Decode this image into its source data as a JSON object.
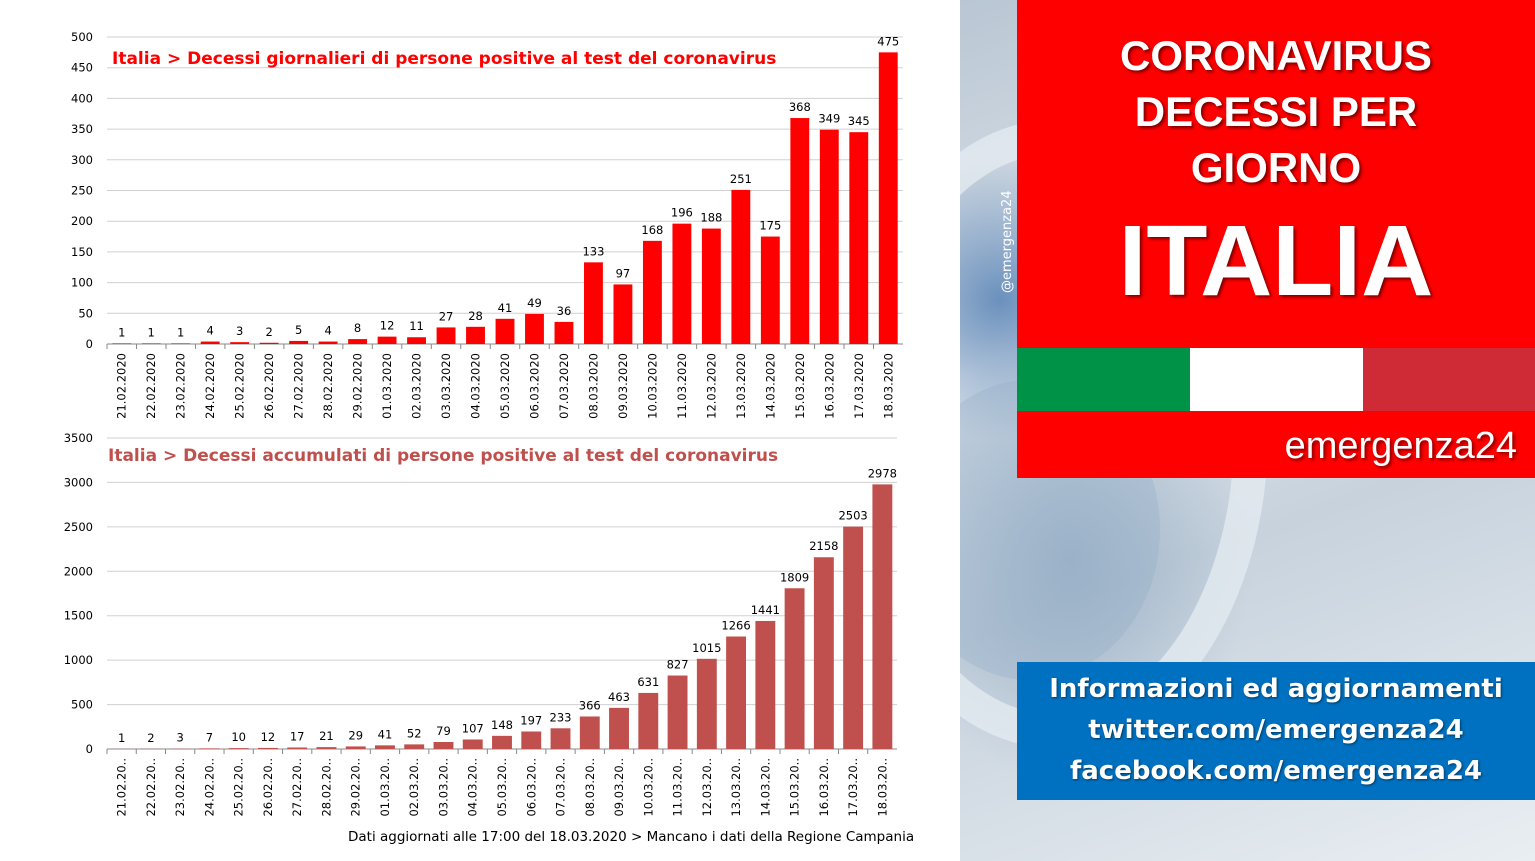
{
  "chart_data": [
    {
      "type": "bar",
      "title": "Italia > Decessi giornalieri di persone positive al test del coronavirus",
      "categories": [
        "21.02.2020",
        "22.02.2020",
        "23.02.2020",
        "24.02.2020",
        "25.02.2020",
        "26.02.2020",
        "27.02.2020",
        "28.02.2020",
        "29.02.2020",
        "01.03.2020",
        "02.03.2020",
        "03.03.2020",
        "04.03.2020",
        "05.03.2020",
        "06.03.2020",
        "07.03.2020",
        "08.03.2020",
        "09.03.2020",
        "10.03.2020",
        "11.03.2020",
        "12.03.2020",
        "13.03.2020",
        "14.03.2020",
        "15.03.2020",
        "16.03.2020",
        "17.03.2020",
        "18.03.2020"
      ],
      "values": [
        1,
        1,
        1,
        4,
        3,
        2,
        5,
        4,
        8,
        12,
        11,
        27,
        28,
        41,
        49,
        36,
        133,
        97,
        168,
        196,
        188,
        251,
        175,
        368,
        349,
        345,
        475
      ],
      "ylim": [
        0,
        500
      ],
      "yticks": [
        0,
        50,
        100,
        150,
        200,
        250,
        300,
        350,
        400,
        450,
        500
      ],
      "color": "#ff0000",
      "grid": true
    },
    {
      "type": "bar",
      "title": "Italia > Decessi accumulati di persone positive al test del coronavirus",
      "categories": [
        "21.02.20..",
        "22.02.20..",
        "23.02.20..",
        "24.02.20..",
        "25.02.20..",
        "26.02.20..",
        "27.02.20..",
        "28.02.20..",
        "29.02.20..",
        "01.03.20..",
        "02.03.20..",
        "03.03.20..",
        "04.03.20..",
        "05.03.20..",
        "06.03.20..",
        "07.03.20..",
        "08.03.20..",
        "09.03.20..",
        "10.03.20..",
        "11.03.20..",
        "12.03.20..",
        "13.03.20..",
        "14.03.20..",
        "15.03.20..",
        "16.03.20..",
        "17.03.20..",
        "18.03.20.."
      ],
      "values": [
        1,
        2,
        3,
        7,
        10,
        12,
        17,
        21,
        29,
        41,
        52,
        79,
        107,
        148,
        197,
        233,
        366,
        463,
        631,
        827,
        1015,
        1266,
        1441,
        1809,
        2158,
        2503,
        2978
      ],
      "ylim": [
        0,
        3500
      ],
      "yticks": [
        0,
        500,
        1000,
        1500,
        2000,
        2500,
        3000,
        3500
      ],
      "color": "#c0504d",
      "grid": true
    }
  ],
  "footnote": "Dati aggiornati alle  17:00 del 18.03.2020 > Mancano i dati della Regione  Campania",
  "side": {
    "handle": "@emergenza24",
    "headline": [
      "CORONAVIRUS",
      "DECESSI PER",
      "GIORNO",
      "ITALIA"
    ],
    "brand": "emergenza24",
    "info": [
      "Informazioni ed aggiornamenti",
      "twitter.com/emergenza24",
      "facebook.com/emergenza24"
    ],
    "flag_colors": [
      "#009246",
      "#ffffff",
      "#ce2b37"
    ],
    "red_box_color": "#ff0000",
    "blue_box_color": "#0070c0"
  }
}
